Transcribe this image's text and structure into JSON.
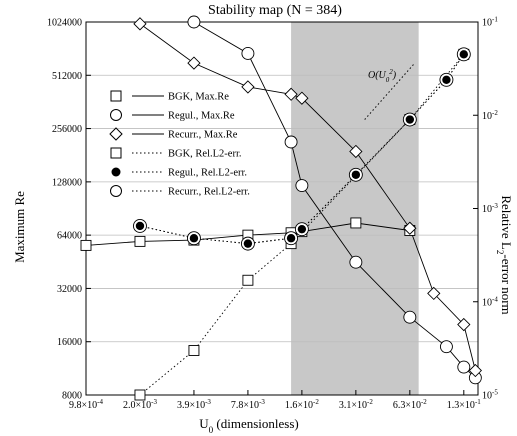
{
  "chart_data": {
    "type": "line",
    "title": "Stability map (N = 384)",
    "xlabel": "U_0 (dimensionless)",
    "ylabel_left": "Maximum Re",
    "ylabel_right": "Relative L2-error norm",
    "x_scale": "log2",
    "x_ticks": [
      0.0009765625,
      0.001953125,
      0.00390625,
      0.0078125,
      0.015625,
      0.03125,
      0.0625,
      0.125
    ],
    "x_tick_labels": [
      "9.8×10^-4",
      "2.0×10^-3",
      "3.9×10^-3",
      "7.8×10^-3",
      "1.6×10^-2",
      "3.1×10^-2",
      "6.3×10^-2",
      "1.3×10^-1"
    ],
    "xlim": [
      0.0009765625,
      0.15
    ],
    "y_left_scale": "log2",
    "y_left_ticks": [
      8000,
      16000,
      32000,
      64000,
      128000,
      256000,
      512000,
      1024000
    ],
    "y_left_tick_labels": [
      "8000",
      "16000",
      "32000",
      "64000",
      "128000",
      "256000",
      "512000",
      "1024000"
    ],
    "ylim_left": [
      8000,
      1024000
    ],
    "y_right_scale": "log10",
    "y_right_ticks": [
      1e-05,
      0.0001,
      0.001,
      0.01,
      0.1
    ],
    "y_right_tick_labels": [
      "10^-5",
      "10^-4",
      "10^-3",
      "10^-2",
      "10^-1"
    ],
    "ylim_right": [
      1e-05,
      0.1
    ],
    "shaded_region": [
      0.0136,
      0.07
    ],
    "shaded_color": "#c8c8c8",
    "grid": "horizontal",
    "legend_position": "left",
    "annotation": {
      "text": "O(U_0^2)",
      "slope_line": {
        "x": [
          0.035,
          0.0655
        ],
        "y": [
          0.009,
          0.035
        ],
        "axis": "right"
      }
    },
    "series": [
      {
        "name": "BGK, Max.Re",
        "axis": "left",
        "marker": "square",
        "fill": "open",
        "line": "solid",
        "x": [
          0.0009765625,
          0.001953125,
          0.00390625,
          0.0078125,
          0.0136,
          0.015625,
          0.03125,
          0.0625
        ],
        "y": [
          56000,
          59000,
          60000,
          64000,
          66000,
          67000,
          75000,
          68000
        ]
      },
      {
        "name": "Regul., Max.Re",
        "axis": "left",
        "marker": "circle",
        "fill": "open",
        "line": "solid",
        "x": [
          0.00390625,
          0.0078125,
          0.0136,
          0.015625,
          0.03125,
          0.0625,
          0.1,
          0.125,
          0.145
        ],
        "y": [
          1024000,
          680000,
          215000,
          122000,
          45000,
          22000,
          15000,
          11500,
          10000
        ]
      },
      {
        "name": "Recurr., Max.Re",
        "axis": "left",
        "marker": "diamond",
        "fill": "open",
        "line": "solid",
        "x": [
          0.001953125,
          0.00390625,
          0.0078125,
          0.0136,
          0.015625,
          0.03125,
          0.0625,
          0.085,
          0.125,
          0.145
        ],
        "y": [
          1000000,
          600000,
          440000,
          400000,
          380000,
          190000,
          70000,
          30000,
          20000,
          11000
        ]
      },
      {
        "name": "BGK, Rel.L2-err.",
        "axis": "right",
        "marker": "square",
        "fill": "open",
        "line": "dotted",
        "x": [
          0.001953125,
          0.00390625,
          0.0078125,
          0.0136,
          0.0625,
          0.125
        ],
        "y": [
          1e-05,
          3e-05,
          0.00017,
          0.00042,
          0.009,
          0.045
        ]
      },
      {
        "name": "Regul., Rel.L2-err.",
        "axis": "right",
        "marker": "circle",
        "fill": "filled",
        "line": "dotted",
        "x": [
          0.001953125,
          0.00390625,
          0.0078125,
          0.0136,
          0.015625,
          0.03125,
          0.0625,
          0.1,
          0.125
        ],
        "y": [
          0.00065,
          0.00048,
          0.00042,
          0.00048,
          0.0006,
          0.0023,
          0.009,
          0.024,
          0.045
        ]
      },
      {
        "name": "Recurr., Rel.L2-err.",
        "axis": "right",
        "marker": "circle",
        "fill": "open",
        "line": "dotted",
        "x": [
          0.001953125,
          0.00390625,
          0.0078125,
          0.0136,
          0.015625,
          0.03125,
          0.0625,
          0.1,
          0.125
        ],
        "y": [
          0.00065,
          0.00048,
          0.00042,
          0.00048,
          0.0006,
          0.0023,
          0.009,
          0.024,
          0.045
        ]
      }
    ]
  }
}
